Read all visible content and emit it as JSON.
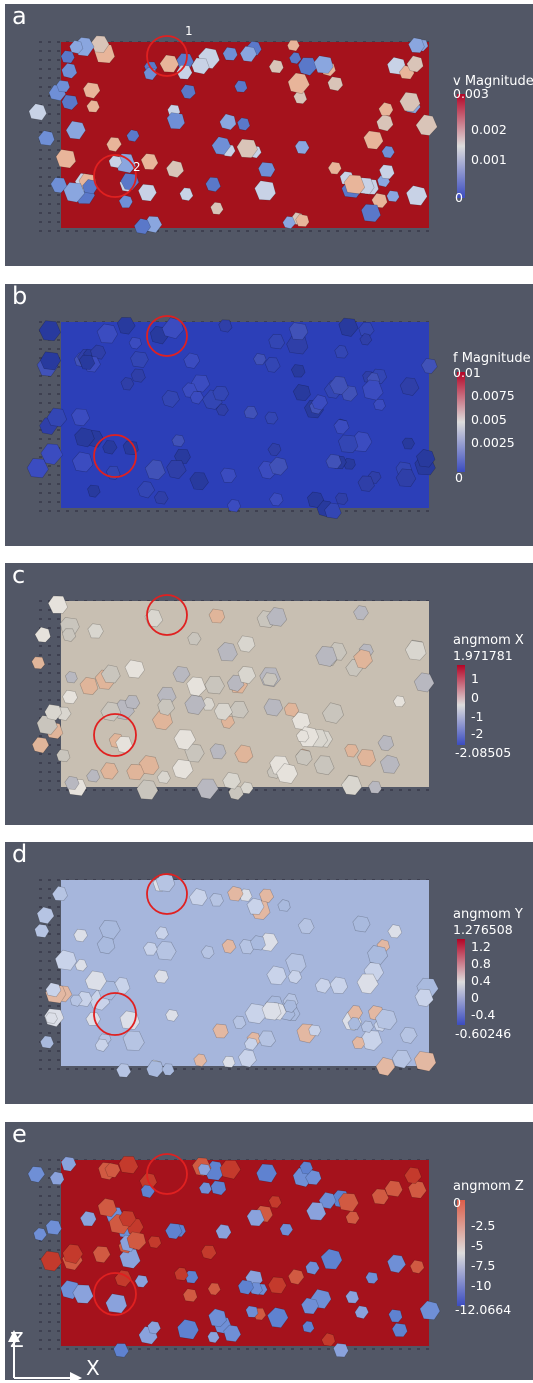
{
  "panels": [
    {
      "label": "a",
      "title": "v Magnitude",
      "ticks": [
        "0.003",
        "0.002",
        "0.001",
        "0"
      ],
      "annotations": [
        "1",
        "2"
      ],
      "colors": {
        "field": "#a5121c",
        "low": "#3b4cc0",
        "mid": "#dcdcdc",
        "high": "#b40426"
      }
    },
    {
      "label": "b",
      "title": "f Magnitude",
      "ticks": [
        "0.01",
        "0.0075",
        "0.005",
        "0.0025",
        "0"
      ],
      "colors": {
        "field": "#2c3fb8",
        "low": "#3b4cc0",
        "mid": "#dcdcdc",
        "high": "#b40426"
      }
    },
    {
      "label": "c",
      "title": "angmom X",
      "ticks": [
        "1.971781",
        "1",
        "0",
        "-1",
        "-2",
        "-2.08505"
      ],
      "colors": {
        "field": "#c8bfb2",
        "low": "#3b4cc0",
        "mid": "#dcdcdc",
        "high": "#b40426"
      }
    },
    {
      "label": "d",
      "title": "angmom Y",
      "ticks": [
        "1.276508",
        "1.2",
        "0.8",
        "0.4",
        "0",
        "-0.4",
        "-0.60246"
      ],
      "colors": {
        "field": "#a6b6dc",
        "low": "#3b4cc0",
        "mid": "#dcdcdc",
        "high": "#b40426"
      }
    },
    {
      "label": "e",
      "title": "angmom Z",
      "ticks": [
        "0",
        "-2.5",
        "-5",
        "-7.5",
        "-10",
        "-12.0664"
      ],
      "colors": {
        "field": "#a5121c",
        "low": "#3b4cc0",
        "mid": "#dcdcdc",
        "high": "#b40426"
      }
    }
  ],
  "axes": {
    "vertical": "Z",
    "horizontal": "X"
  }
}
